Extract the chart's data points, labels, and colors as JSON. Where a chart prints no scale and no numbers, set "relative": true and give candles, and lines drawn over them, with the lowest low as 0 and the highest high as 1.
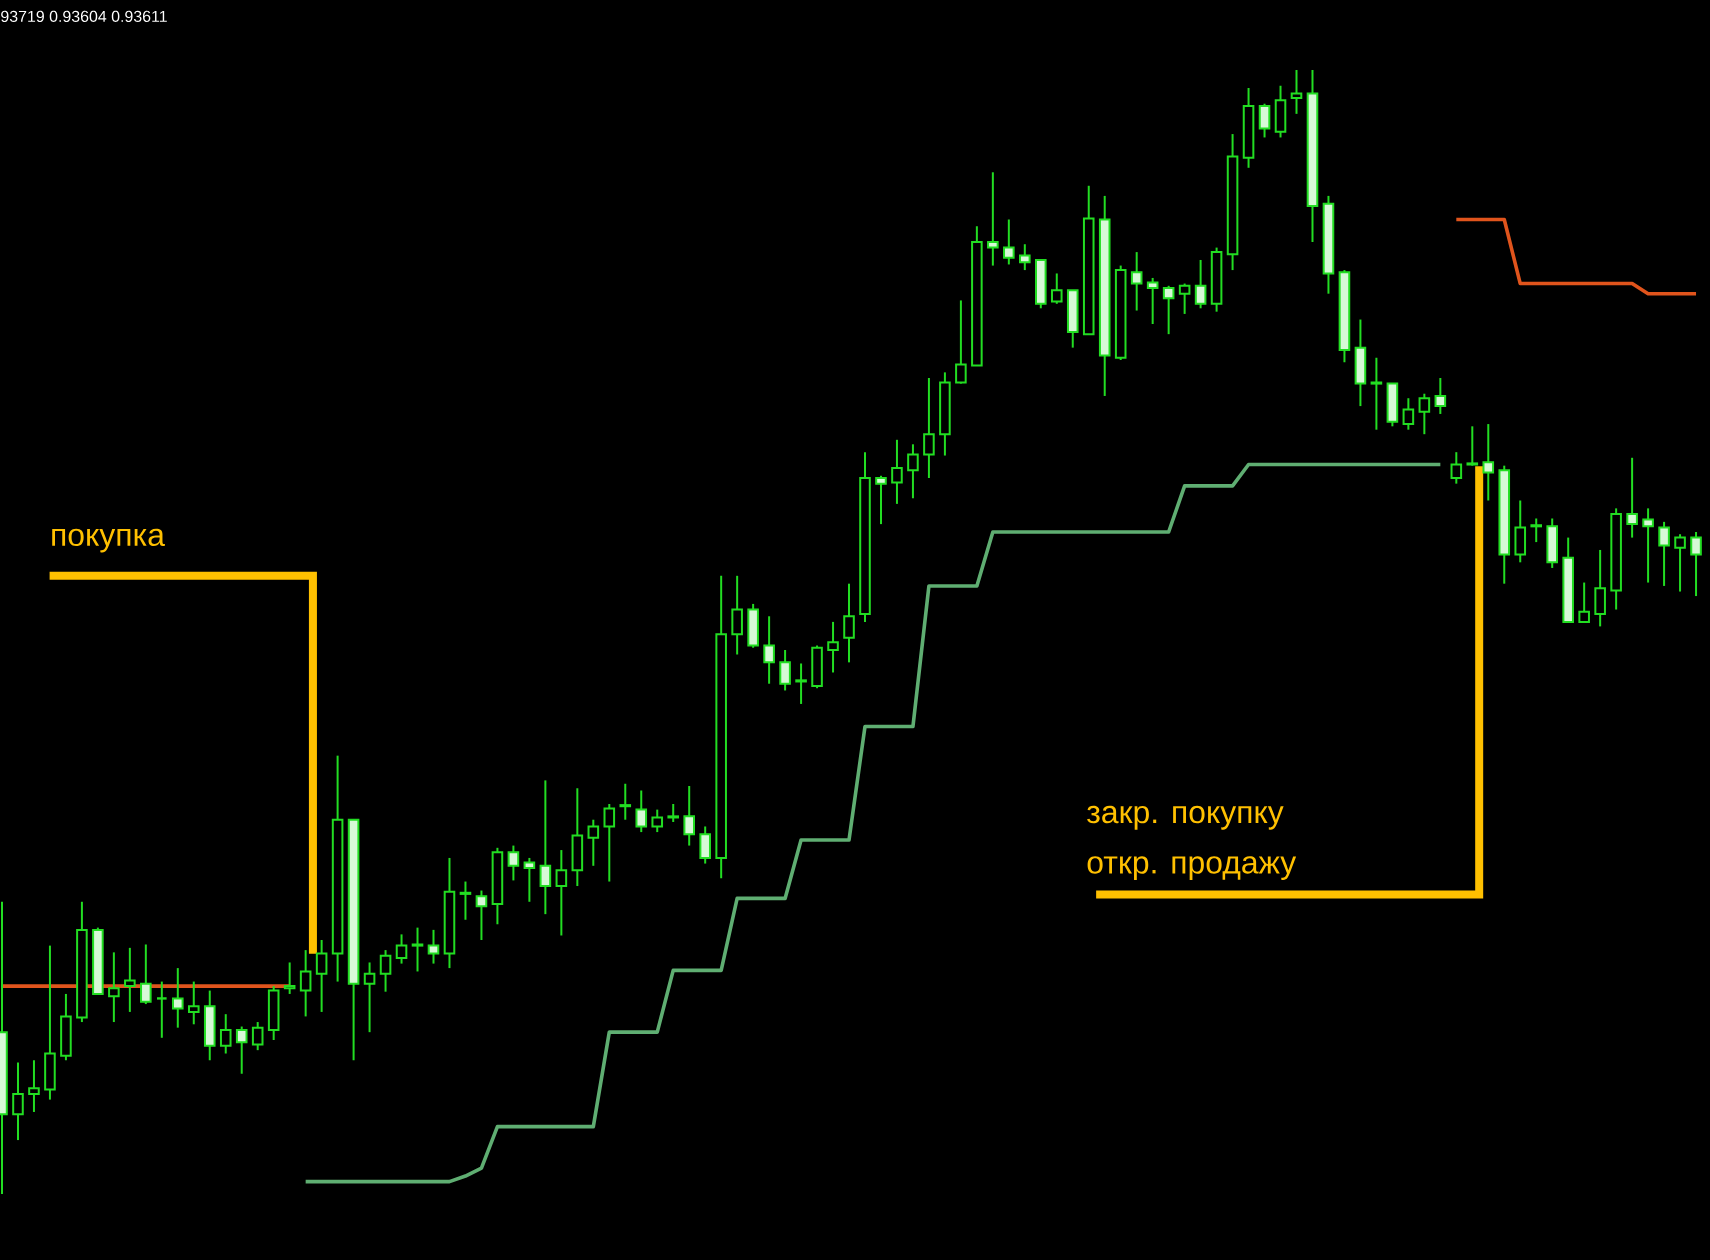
{
  "chart_data": {
    "type": "candlestick",
    "relative": true,
    "color": "#22dd22",
    "categories": [
      null,
      null,
      null,
      null,
      null,
      null,
      null,
      null,
      null,
      null,
      null,
      null,
      null,
      null,
      null,
      null,
      null,
      null,
      null,
      null,
      null,
      null,
      null,
      null,
      null,
      null,
      null,
      null,
      null,
      null,
      null,
      null,
      null,
      null,
      null,
      null,
      null,
      null,
      null,
      null,
      null,
      null,
      null,
      null,
      null,
      null,
      null,
      null,
      null,
      null,
      null,
      null,
      null,
      null,
      null,
      null,
      null,
      null,
      null,
      null,
      null,
      null,
      null,
      null,
      null,
      null,
      null,
      null,
      null,
      null,
      null,
      null,
      null,
      null,
      null,
      null,
      null,
      null,
      null,
      null,
      null,
      null,
      null,
      null,
      null,
      null,
      null,
      null,
      null,
      null,
      null,
      null,
      null,
      null,
      null,
      null,
      null,
      null,
      null,
      null,
      null,
      null,
      null,
      null,
      null,
      null,
      null
    ],
    "ohlc": [
      [
        0.144,
        0.26,
        0,
        0.071
      ],
      [
        0.071,
        0.117,
        0.048,
        0.089
      ],
      [
        0.089,
        0.119,
        0.073,
        0.094
      ],
      [
        0.093,
        0.221,
        0.084,
        0.125
      ],
      [
        0.123,
        0.178,
        0.119,
        0.158
      ],
      [
        0.157,
        0.26,
        0.153,
        0.235
      ],
      [
        0.235,
        0.237,
        0.178,
        0.178
      ],
      [
        0.176,
        0.215,
        0.153,
        0.183
      ],
      [
        0.185,
        0.219,
        0.162,
        0.19
      ],
      [
        0.187,
        0.222,
        0.169,
        0.171
      ],
      [
        0.174,
        0.189,
        0.139,
        0.174
      ],
      [
        0.174,
        0.201,
        0.148,
        0.165
      ],
      [
        0.162,
        0.189,
        0.151,
        0.167
      ],
      [
        0.167,
        0.181,
        0.119,
        0.132
      ],
      [
        0.132,
        0.16,
        0.125,
        0.146
      ],
      [
        0.146,
        0.149,
        0.107,
        0.135
      ],
      [
        0.133,
        0.153,
        0.128,
        0.148
      ],
      [
        0.146,
        0.185,
        0.137,
        0.181
      ],
      [
        0.183,
        0.206,
        0.178,
        0.185
      ],
      [
        0.181,
        0.217,
        0.158,
        0.198
      ],
      [
        0.196,
        0.226,
        0.162,
        0.214
      ],
      [
        0.214,
        0.39,
        0.189,
        0.333
      ],
      [
        0.333,
        0.333,
        0.119,
        0.187
      ],
      [
        0.187,
        0.206,
        0.144,
        0.196
      ],
      [
        0.196,
        0.217,
        0.18,
        0.212
      ],
      [
        0.21,
        0.231,
        0.205,
        0.221
      ],
      [
        0.221,
        0.237,
        0.198,
        0.222
      ],
      [
        0.221,
        0.235,
        0.205,
        0.214
      ],
      [
        0.214,
        0.299,
        0.201,
        0.269
      ],
      [
        0.267,
        0.278,
        0.244,
        0.268
      ],
      [
        0.265,
        0.27,
        0.226,
        0.256
      ],
      [
        0.258,
        0.308,
        0.24,
        0.304
      ],
      [
        0.304,
        0.31,
        0.279,
        0.292
      ],
      [
        0.295,
        0.299,
        0.26,
        0.29
      ],
      [
        0.292,
        0.368,
        0.249,
        0.274
      ],
      [
        0.274,
        0.306,
        0.23,
        0.288
      ],
      [
        0.288,
        0.361,
        0.274,
        0.319
      ],
      [
        0.317,
        0.333,
        0.292,
        0.327
      ],
      [
        0.327,
        0.347,
        0.278,
        0.343
      ],
      [
        0.345,
        0.365,
        0.333,
        0.346
      ],
      [
        0.342,
        0.359,
        0.322,
        0.327
      ],
      [
        0.327,
        0.342,
        0.322,
        0.335
      ],
      [
        0.335,
        0.347,
        0.331,
        0.336
      ],
      [
        0.336,
        0.363,
        0.31,
        0.32
      ],
      [
        0.32,
        0.327,
        0.294,
        0.299
      ],
      [
        0.299,
        0.55,
        0.281,
        0.498
      ],
      [
        0.498,
        0.55,
        0.48,
        0.52
      ],
      [
        0.52,
        0.525,
        0.486,
        0.488
      ],
      [
        0.488,
        0.514,
        0.454,
        0.473
      ],
      [
        0.473,
        0.484,
        0.448,
        0.454
      ],
      [
        0.456,
        0.472,
        0.436,
        0.457
      ],
      [
        0.452,
        0.488,
        0.45,
        0.486
      ],
      [
        0.484,
        0.509,
        0.464,
        0.491
      ],
      [
        0.495,
        0.543,
        0.473,
        0.514
      ],
      [
        0.516,
        0.66,
        0.509,
        0.637
      ],
      [
        0.637,
        0.639,
        0.596,
        0.632
      ],
      [
        0.633,
        0.671,
        0.614,
        0.646
      ],
      [
        0.644,
        0.667,
        0.619,
        0.658
      ],
      [
        0.658,
        0.726,
        0.637,
        0.676
      ],
      [
        0.676,
        0.731,
        0.657,
        0.722
      ],
      [
        0.722,
        0.795,
        0.721,
        0.738
      ],
      [
        0.737,
        0.861,
        0.737,
        0.847
      ],
      [
        0.847,
        0.909,
        0.826,
        0.842
      ],
      [
        0.842,
        0.867,
        0.827,
        0.833
      ],
      [
        0.835,
        0.845,
        0.822,
        0.829
      ],
      [
        0.831,
        0.831,
        0.788,
        0.792
      ],
      [
        0.794,
        0.819,
        0.792,
        0.804
      ],
      [
        0.804,
        0.804,
        0.753,
        0.767
      ],
      [
        0.765,
        0.897,
        0.765,
        0.868
      ],
      [
        0.867,
        0.888,
        0.71,
        0.746
      ],
      [
        0.744,
        0.826,
        0.742,
        0.822
      ],
      [
        0.82,
        0.838,
        0.786,
        0.81
      ],
      [
        0.811,
        0.815,
        0.774,
        0.806
      ],
      [
        0.806,
        0.808,
        0.765,
        0.797
      ],
      [
        0.801,
        0.81,
        0.783,
        0.808
      ],
      [
        0.808,
        0.831,
        0.788,
        0.792
      ],
      [
        0.792,
        0.842,
        0.785,
        0.838
      ],
      [
        0.836,
        0.943,
        0.822,
        0.923
      ],
      [
        0.922,
        0.984,
        0.913,
        0.968
      ],
      [
        0.968,
        0.97,
        0.94,
        0.948
      ],
      [
        0.945,
        0.986,
        0.94,
        0.973
      ],
      [
        0.975,
        1,
        0.961,
        0.979
      ],
      [
        0.979,
        1,
        0.847,
        0.879
      ],
      [
        0.881,
        0.888,
        0.801,
        0.819
      ],
      [
        0.82,
        0.822,
        0.74,
        0.751
      ],
      [
        0.753,
        0.778,
        0.701,
        0.721
      ],
      [
        0.721,
        0.744,
        0.68,
        0.722
      ],
      [
        0.721,
        0.721,
        0.683,
        0.687
      ],
      [
        0.685,
        0.708,
        0.68,
        0.698
      ],
      [
        0.696,
        0.712,
        0.676,
        0.708
      ],
      [
        0.71,
        0.726,
        0.694,
        0.701
      ],
      [
        0.637,
        0.66,
        0.632,
        0.649
      ],
      [
        0.649,
        0.683,
        0.648,
        0.65
      ],
      [
        0.651,
        0.685,
        0.617,
        0.642
      ],
      [
        0.644,
        0.648,
        0.543,
        0.569
      ],
      [
        0.569,
        0.617,
        0.562,
        0.593
      ],
      [
        0.594,
        0.601,
        0.58,
        0.595
      ],
      [
        0.594,
        0.601,
        0.557,
        0.562
      ],
      [
        0.566,
        0.584,
        0.509,
        0.509
      ],
      [
        0.509,
        0.544,
        0.509,
        0.518
      ],
      [
        0.516,
        0.573,
        0.505,
        0.539
      ],
      [
        0.537,
        0.61,
        0.52,
        0.605
      ],
      [
        0.605,
        0.655,
        0.584,
        0.596
      ],
      [
        0.6,
        0.61,
        0.544,
        0.594
      ],
      [
        0.593,
        0.598,
        0.541,
        0.577
      ],
      [
        0.575,
        0.587,
        0.536,
        0.584
      ],
      [
        0.584,
        0.589,
        0.532,
        0.569
      ]
    ],
    "series": [
      {
        "type": "line",
        "color": "#e0541c",
        "values": [
          0.185,
          0.185,
          0.185,
          0.185,
          0.185,
          0.185,
          0.185,
          0.185,
          0.185,
          0.185,
          0.185,
          0.185,
          0.185,
          0.185,
          0.185,
          0.185,
          0.185,
          0.185,
          0.185,
          null,
          null,
          null,
          null,
          null,
          null,
          null,
          null,
          null,
          null,
          null,
          null,
          null,
          null,
          null,
          null,
          null,
          null,
          null,
          null,
          null,
          null,
          null,
          null,
          null,
          null,
          null,
          null,
          null,
          null,
          null,
          null,
          null,
          null,
          null,
          null,
          null,
          null,
          null,
          null,
          null,
          null,
          null,
          null,
          null,
          null,
          null,
          null,
          null,
          null,
          null,
          null,
          null,
          null,
          null,
          null,
          null,
          null,
          null,
          null,
          null,
          null,
          null,
          null,
          null,
          null,
          null,
          null,
          null,
          null,
          null,
          null,
          0.867,
          0.867,
          0.867,
          0.867,
          0.81,
          0.81,
          0.81,
          0.81,
          0.81,
          0.81,
          0.81,
          0.81,
          0.801,
          0.801,
          0.801,
          0.801
        ]
      },
      {
        "type": "line",
        "color": "#5fae72",
        "values": [
          null,
          null,
          null,
          null,
          null,
          null,
          null,
          null,
          null,
          null,
          null,
          null,
          null,
          null,
          null,
          null,
          null,
          null,
          null,
          0.011,
          0.011,
          0.011,
          0.011,
          0.011,
          0.011,
          0.011,
          0.011,
          0.011,
          0.011,
          0.016,
          0.023,
          0.06,
          0.06,
          0.06,
          0.06,
          0.06,
          0.06,
          0.06,
          0.144,
          0.144,
          0.144,
          0.144,
          0.199,
          0.199,
          0.199,
          0.199,
          0.263,
          0.263,
          0.263,
          0.263,
          0.315,
          0.315,
          0.315,
          0.315,
          0.416,
          0.416,
          0.416,
          0.416,
          0.541,
          0.541,
          0.541,
          0.541,
          0.589,
          0.589,
          0.589,
          0.589,
          0.589,
          0.589,
          0.589,
          0.589,
          0.589,
          0.589,
          0.589,
          0.589,
          0.63,
          0.63,
          0.63,
          0.63,
          0.649,
          0.649,
          0.649,
          0.649,
          0.649,
          0.649,
          0.649,
          0.649,
          0.649,
          0.649,
          0.649,
          0.649,
          0.649,
          null,
          null,
          null,
          null,
          null,
          null,
          null,
          null,
          null,
          null,
          null,
          null,
          null,
          null,
          null,
          null
        ]
      }
    ],
    "annotations": [
      "93719 0.93604 0.93611",
      "покупка",
      "закр. покупку",
      "откр. продажу"
    ]
  }
}
